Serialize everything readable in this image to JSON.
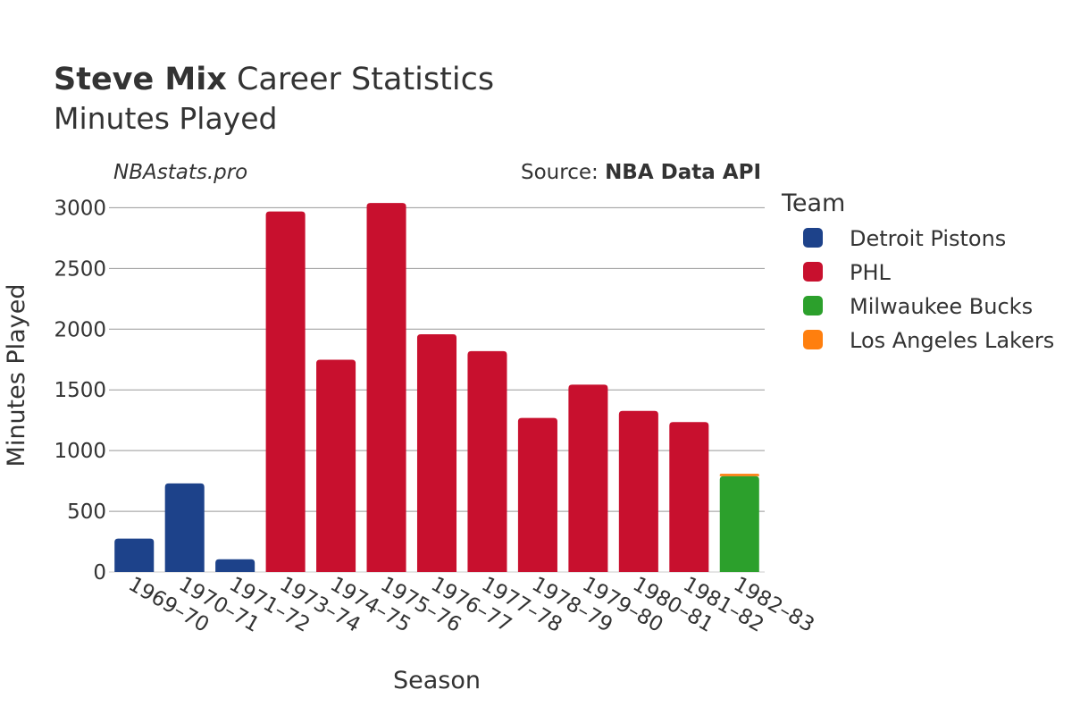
{
  "header": {
    "player_name": "Steve Mix",
    "title_rest": "Career Statistics",
    "subtitle": "Minutes Played"
  },
  "watermark": "NBAstats.pro",
  "source": {
    "prefix": "Source: ",
    "name": "NBA Data API"
  },
  "legend": {
    "title": "Team",
    "items": [
      {
        "label": "Detroit Pistons",
        "color": "#1d428a"
      },
      {
        "label": "PHL",
        "color": "#c8102e"
      },
      {
        "label": "Milwaukee Bucks",
        "color": "#2ca02c"
      },
      {
        "label": "Los Angeles Lakers",
        "color": "#ff7f0e"
      }
    ]
  },
  "chart_data": {
    "type": "bar",
    "xlabel": "Season",
    "ylabel": "Minutes Played",
    "ylim": [
      0,
      3150
    ],
    "yticks": [
      0,
      500,
      1000,
      1500,
      2000,
      2500,
      3000
    ],
    "grid": true,
    "legend_position": "right",
    "categories": [
      "1969–70",
      "1970–71",
      "1971–72",
      "1973–74",
      "1974–75",
      "1975–76",
      "1976–77",
      "1977–78",
      "1978–79",
      "1979–80",
      "1980–81",
      "1981–82",
      "1982–83"
    ],
    "series": [
      {
        "name": "Detroit Pistons",
        "color": "#1d428a",
        "values": [
          275,
          730,
          105,
          null,
          null,
          null,
          null,
          null,
          null,
          null,
          null,
          null,
          null
        ]
      },
      {
        "name": "PHL",
        "color": "#c8102e",
        "values": [
          null,
          null,
          null,
          2969,
          1748,
          3039,
          1958,
          1819,
          1269,
          1543,
          1327,
          1235,
          null
        ]
      },
      {
        "name": "Milwaukee Bucks",
        "color": "#2ca02c",
        "values": [
          null,
          null,
          null,
          null,
          null,
          null,
          null,
          null,
          null,
          null,
          null,
          null,
          789
        ]
      },
      {
        "name": "Los Angeles Lakers",
        "color": "#ff7f0e",
        "values": [
          null,
          null,
          null,
          null,
          null,
          null,
          null,
          null,
          null,
          null,
          null,
          null,
          20
        ]
      }
    ]
  }
}
